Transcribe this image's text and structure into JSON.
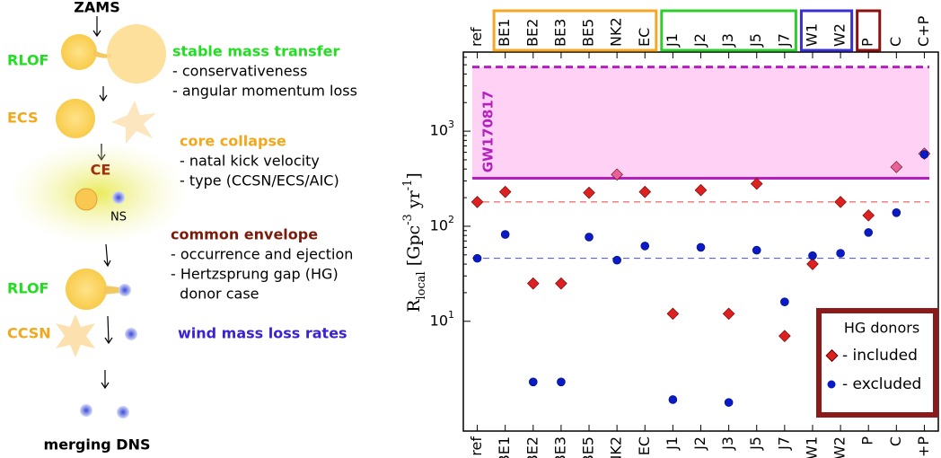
{
  "diagram": {
    "stages": [
      "ZAMS",
      "RLOF",
      "ECS",
      "CE",
      "NS",
      "RLOF",
      "CCSN",
      "merging DNS"
    ],
    "notes": [
      {
        "title": "stable mass transfer",
        "color": "#22dd22",
        "lines": [
          "- conservativeness",
          "- angular momentum loss"
        ]
      },
      {
        "title": "core collapse",
        "color": "#f2a81d",
        "lines": [
          "- natal kick velocity",
          "- type (CCSN/ECS/AIC)"
        ]
      },
      {
        "title": "common envelope",
        "color": "#7a1a0a",
        "lines": [
          "- occurrence and ejection",
          "- Hertzsprung gap (HG)",
          "  donor case"
        ]
      },
      {
        "title": "wind mass loss rates",
        "color": "#3a22d0",
        "lines": []
      }
    ]
  },
  "chart_data": {
    "type": "scatter",
    "ylabel": "R_local [Gpc^-3 yr^-1]",
    "log_y": true,
    "ylim": [
      0.7,
      6800
    ],
    "yticks": [
      {
        "value": 10,
        "label": "10^1"
      },
      {
        "value": 100,
        "label": "10^2"
      },
      {
        "value": 1000,
        "label": "10^3"
      }
    ],
    "categories": [
      "ref",
      "BE1",
      "BE2",
      "BE3",
      "BE5",
      "NK2",
      "EC",
      "J1",
      "J2",
      "J3",
      "J5",
      "J7",
      "W1",
      "W2",
      "P",
      "C",
      "C+P"
    ],
    "groups": [
      {
        "start": 1,
        "end": 6,
        "color": "#f5a623"
      },
      {
        "start": 7,
        "end": 11,
        "color": "#2ecc2e"
      },
      {
        "start": 12,
        "end": 13,
        "color": "#3a2fd0"
      },
      {
        "start": 14,
        "end": 14,
        "color": "#8b1010"
      }
    ],
    "band": {
      "label": "GW170817",
      "range": [
        320,
        4740
      ],
      "color": "#b41fc0",
      "fill": "#ffd2f5"
    },
    "hlines": [
      {
        "value": 180,
        "color": "#e84040"
      },
      {
        "value": 46,
        "color": "#4050e0"
      }
    ],
    "legend": {
      "title": "HG donors",
      "position": "lower right"
    },
    "series": [
      {
        "name": "- included",
        "marker": "diamond",
        "color": "#dd2020",
        "colors": [
          "#dd2020",
          "#dd2020",
          "#dd2020",
          "#dd2020",
          "#dd2020",
          "#e8629a",
          "#dd2020",
          "#dd2020",
          "#dd2020",
          "#dd2020",
          "#dd2020",
          "#dd2020",
          "#dd2020",
          "#dd2020",
          "#dd2020",
          "#e8629a",
          "#e8629a"
        ],
        "values": [
          180,
          230,
          25,
          25,
          225,
          350,
          230,
          12,
          240,
          12,
          280,
          7,
          40,
          180,
          130,
          420,
          580
        ]
      },
      {
        "name": "- excluded",
        "marker": "circle",
        "color": "#0a1ac8",
        "values": [
          46,
          82,
          2.3,
          2.3,
          77,
          44,
          62,
          1.5,
          60,
          1.4,
          56,
          16,
          49,
          52,
          86,
          139,
          570
        ]
      }
    ]
  }
}
